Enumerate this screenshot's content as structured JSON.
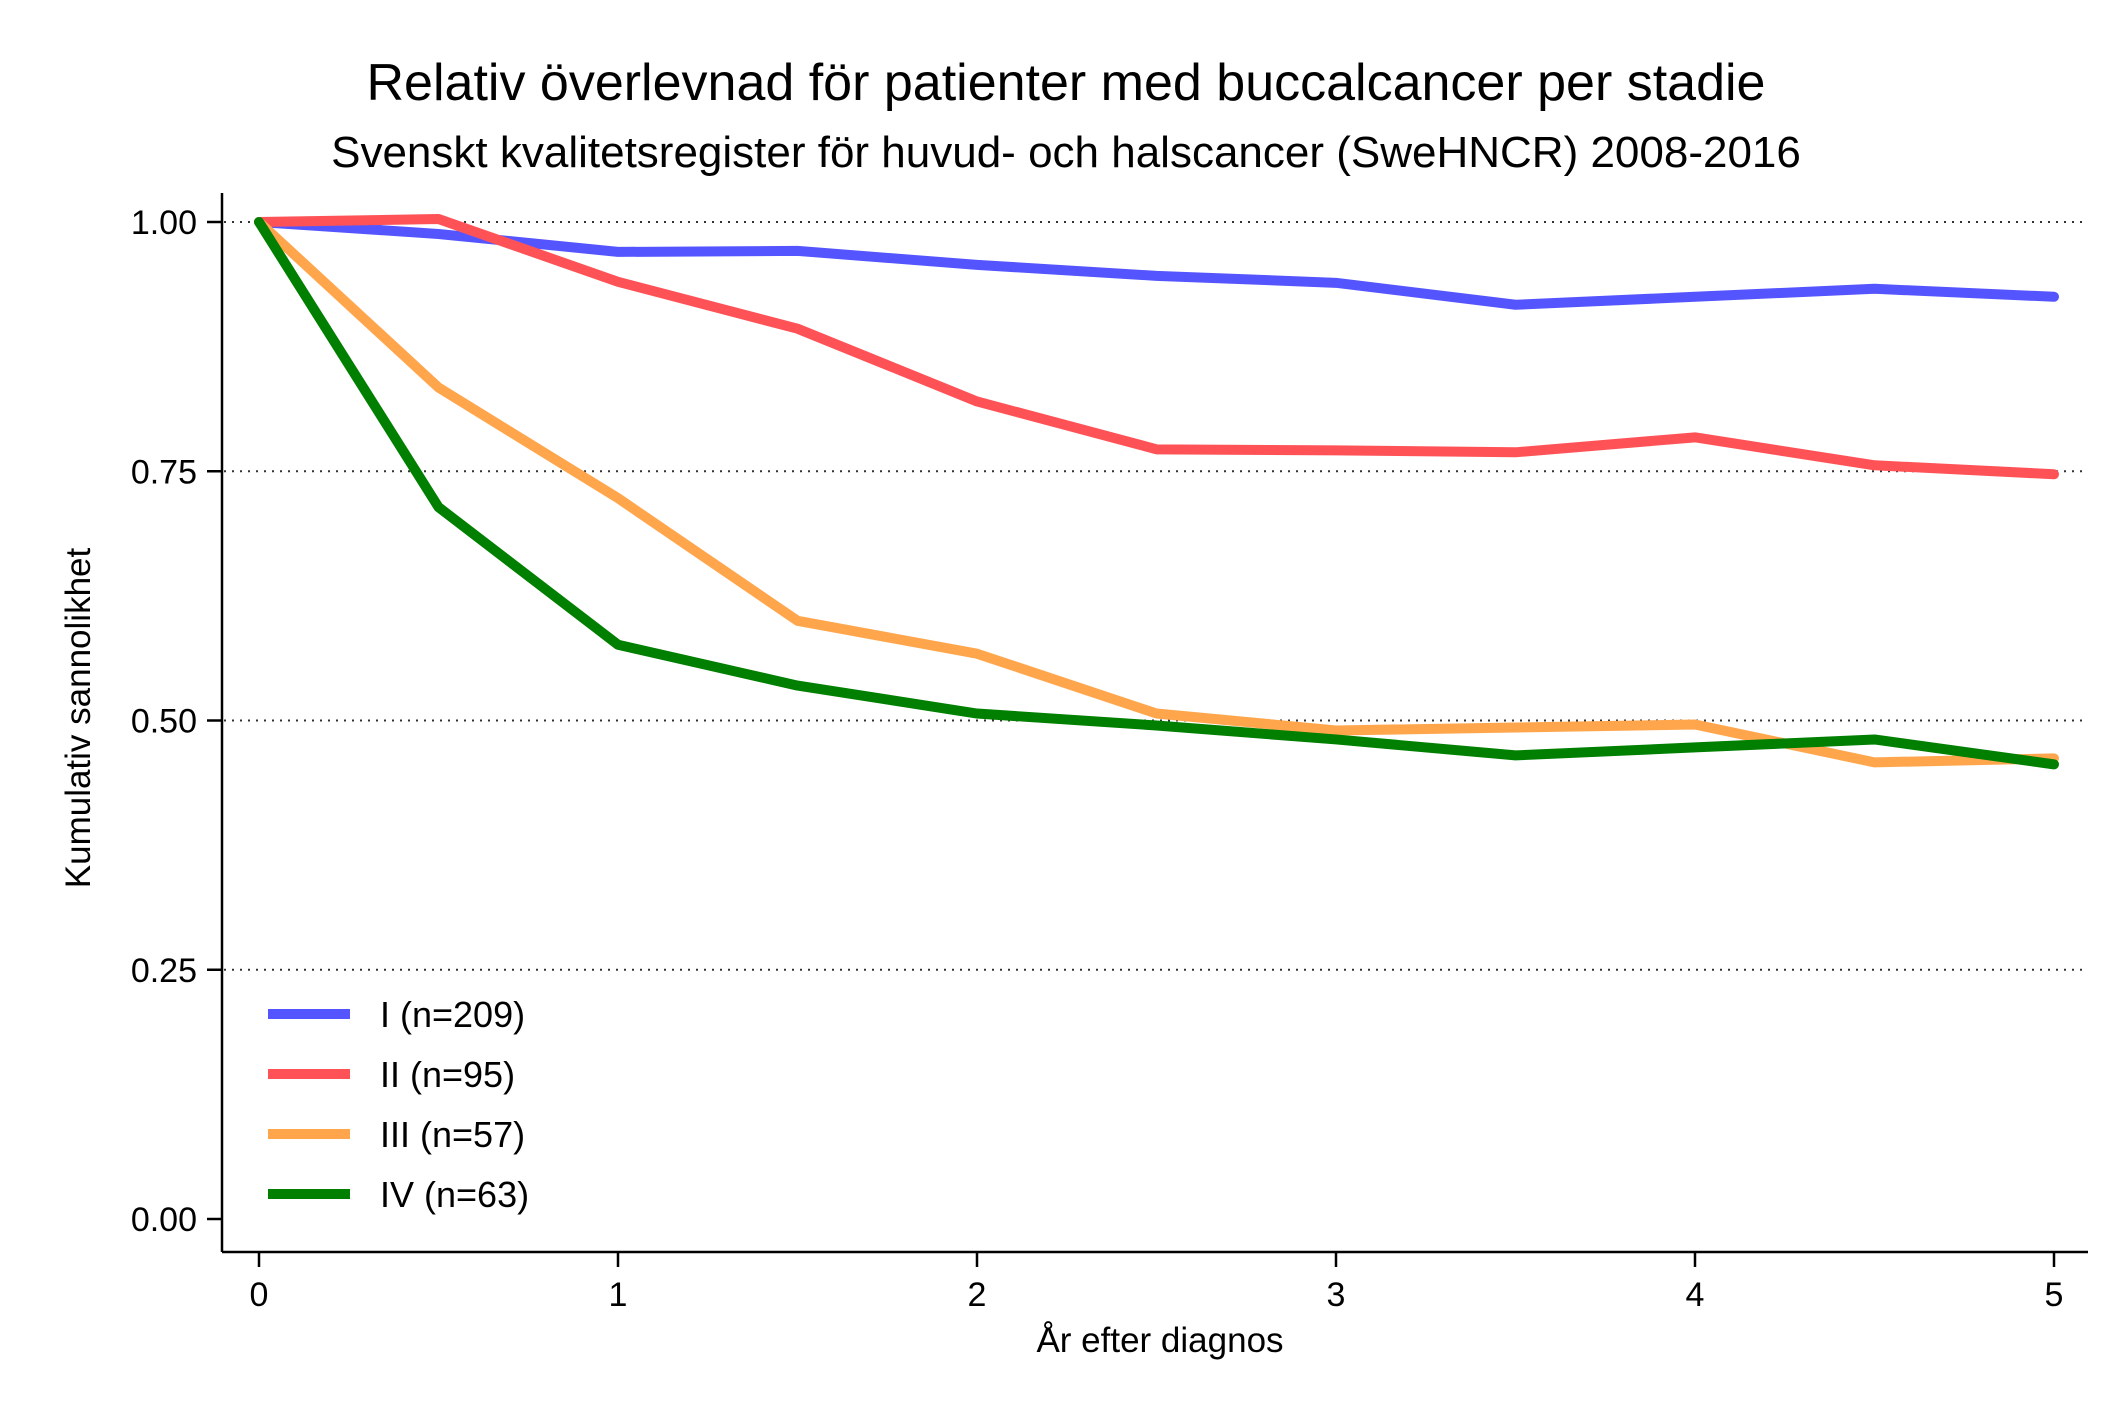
{
  "chart_data": {
    "type": "line",
    "title": "Relativ överlevnad för patienter med buccalcancer per stadie",
    "subtitle": "Svenskt kvalitetsregister för huvud- och halscancer (SweHNCR) 2008-2016",
    "xlabel": "År efter diagnos",
    "ylabel": "Kumulativ sannolikhet",
    "xlim": [
      0,
      5
    ],
    "ylim": [
      0,
      1
    ],
    "x_ticks": [
      0,
      1,
      2,
      3,
      4,
      5
    ],
    "x_tick_labels": [
      "0",
      "1",
      "2",
      "3",
      "4",
      "5"
    ],
    "y_ticks": [
      0,
      0.25,
      0.5,
      0.75,
      1
    ],
    "y_tick_labels": [
      "0.00",
      "0.25",
      "0.50",
      "0.75",
      "1.00"
    ],
    "grid": "horizontal dotted",
    "legend_position": "bottom-left",
    "x": [
      0,
      0.5,
      1,
      1.5,
      2,
      2.5,
      3,
      3.5,
      4,
      4.5,
      5
    ],
    "series": [
      {
        "name": "I (n=209)",
        "color": "#5555ff",
        "values": [
          1.0,
          0.988,
          0.97,
          0.971,
          0.957,
          0.946,
          0.939,
          0.917,
          0.925,
          0.933,
          0.925
        ]
      },
      {
        "name": "II (n=95)",
        "color": "#ff5257",
        "values": [
          1.0,
          1.003,
          0.94,
          0.893,
          0.82,
          0.772,
          0.771,
          0.769,
          0.784,
          0.756,
          0.747
        ]
      },
      {
        "name": "III (n=57)",
        "color": "#ffa64d",
        "values": [
          1.0,
          0.834,
          0.723,
          0.6,
          0.567,
          0.507,
          0.49,
          0.493,
          0.496,
          0.458,
          0.462
        ]
      },
      {
        "name": "IV (n=63)",
        "color": "#007f00",
        "values": [
          1.0,
          0.714,
          0.576,
          0.535,
          0.507,
          0.495,
          0.481,
          0.465,
          0.473,
          0.481,
          0.456
        ]
      }
    ]
  }
}
